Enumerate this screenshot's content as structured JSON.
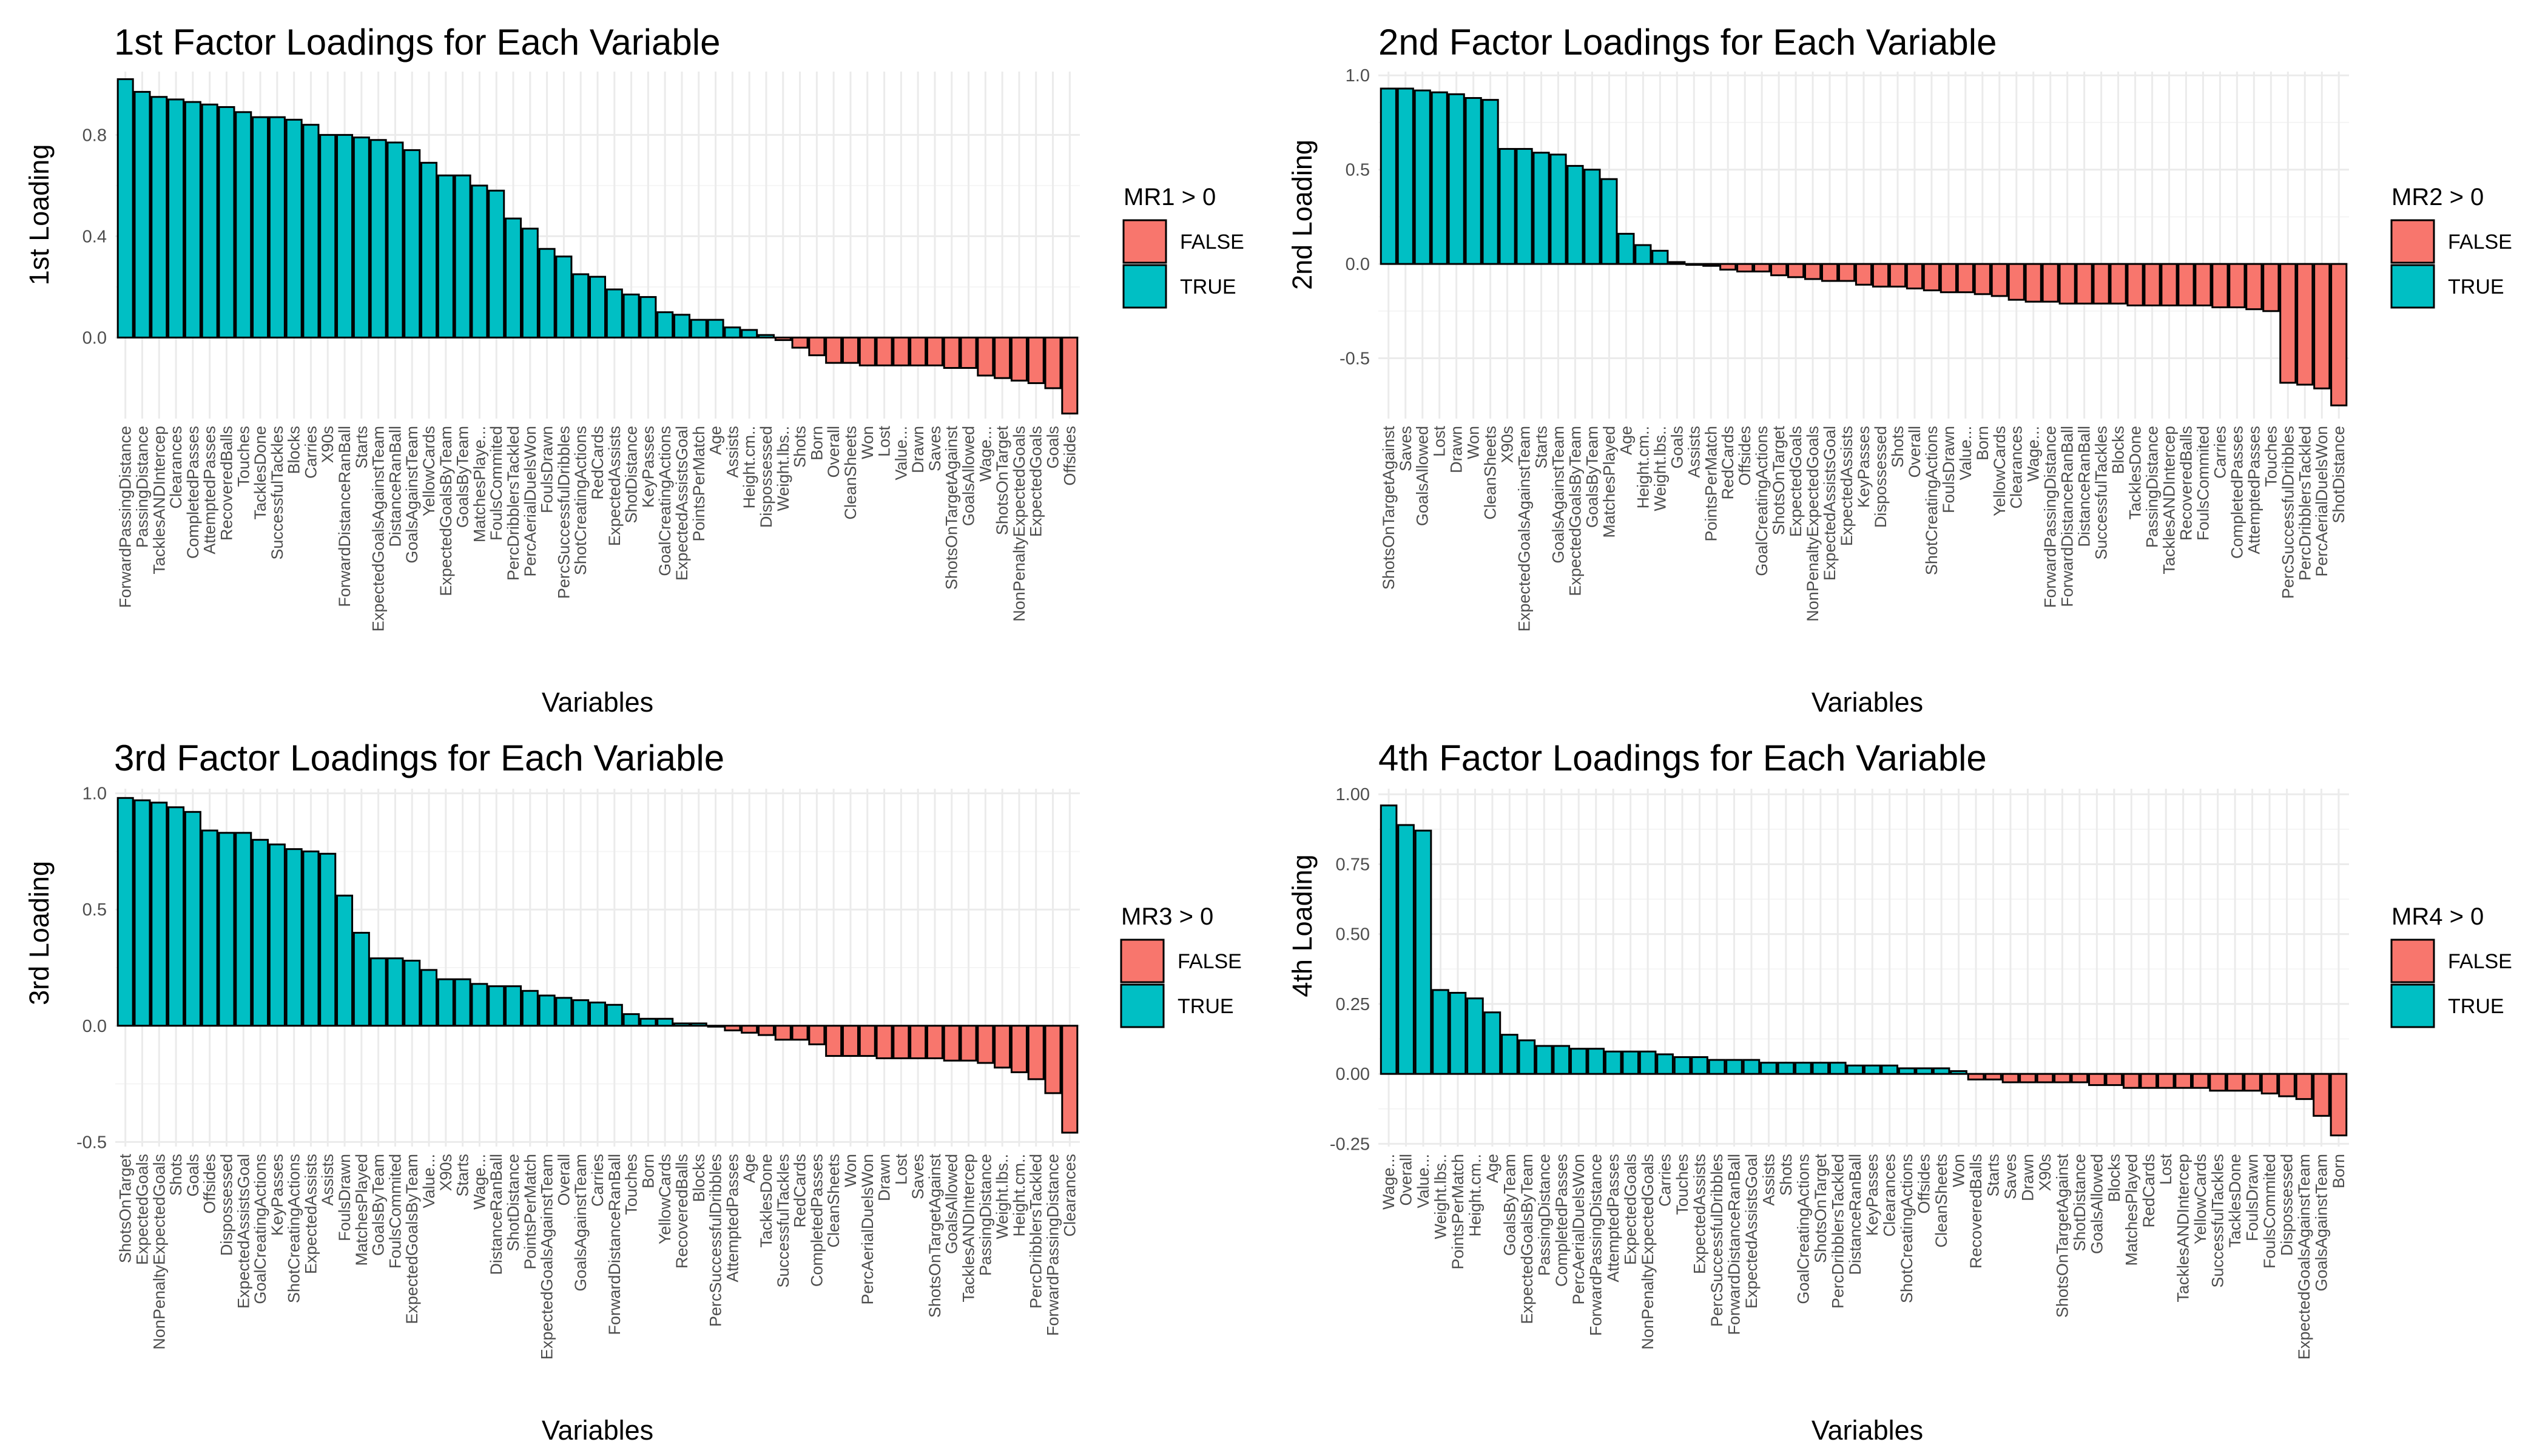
{
  "chart_data": [
    {
      "type": "bar",
      "title": "1st Factor Loadings for Each Variable",
      "xlabel": "Variables",
      "ylabel": "1st Loading",
      "ylim": [
        -0.32,
        1.05
      ],
      "yticks": [
        0,
        0.4,
        0.8
      ],
      "ytick_labels": [
        "0.0",
        "0.4",
        "0.8"
      ],
      "legend": {
        "title": "MR1 > 0",
        "entries": [
          "FALSE",
          "TRUE"
        ],
        "position": "right"
      },
      "grid": true,
      "categories": [
        "ForwardPassingDistance",
        "PassingDistance",
        "TacklesANDIntercep",
        "Clearances",
        "CompletedPasses",
        "AttemptedPasses",
        "RecoveredBalls",
        "Touches",
        "TacklesDone",
        "SuccessfulTackles",
        "Blocks",
        "Carries",
        "X90s",
        "ForwardDistanceRanBall",
        "Starts",
        "ExpectedGoalsAgainstTeam",
        "DistanceRanBall",
        "GoalsAgainstTeam",
        "YellowCards",
        "ExpectedGoalsByTeam",
        "GoalsByTeam",
        "MatchesPlaye...",
        "FoulsCommited",
        "PercDribblersTackled",
        "PercAerialDuelsWon",
        "FoulsDrawn",
        "PercSuccessfulDribbles",
        "ShotCreatingActions",
        "RedCards",
        "ExpectedAssists",
        "ShotDistance",
        "KeyPasses",
        "GoalCreatingActions",
        "ExpectedAssistsGoal",
        "PointsPerMatch",
        "Age",
        "Assists",
        "Height.cm..",
        "Dispossessed",
        "Weight.lbs..",
        "Shots",
        "Born",
        "Overall",
        "CleanSheets",
        "Won",
        "Lost",
        "Value...",
        "Drawn",
        "Saves",
        "ShotsOnTargetAgainst",
        "GoalsAllowed",
        "Wage...",
        "ShotsOnTarget",
        "NonPenaltyExpectedGoals",
        "ExpectedGoals",
        "Goals",
        "Offsides"
      ],
      "values": [
        1.02,
        0.97,
        0.95,
        0.94,
        0.93,
        0.92,
        0.91,
        0.89,
        0.87,
        0.87,
        0.86,
        0.84,
        0.8,
        0.8,
        0.79,
        0.78,
        0.77,
        0.74,
        0.69,
        0.64,
        0.64,
        0.6,
        0.58,
        0.47,
        0.43,
        0.35,
        0.32,
        0.25,
        0.24,
        0.19,
        0.17,
        0.16,
        0.1,
        0.09,
        0.07,
        0.07,
        0.04,
        0.03,
        0.01,
        -0.01,
        -0.04,
        -0.07,
        -0.1,
        -0.1,
        -0.11,
        -0.11,
        -0.11,
        -0.11,
        -0.11,
        -0.12,
        -0.12,
        -0.15,
        -0.16,
        -0.17,
        -0.18,
        -0.2,
        -0.3
      ]
    },
    {
      "type": "bar",
      "title": "2nd Factor Loadings for Each Variable",
      "xlabel": "Variables",
      "ylabel": "2nd Loading",
      "ylim": [
        -0.82,
        1.02
      ],
      "yticks": [
        -0.5,
        0,
        0.5,
        1.0
      ],
      "ytick_labels": [
        "-0.5",
        "0.0",
        "0.5",
        "1.0"
      ],
      "legend": {
        "title": "MR2 > 0",
        "entries": [
          "FALSE",
          "TRUE"
        ],
        "position": "right"
      },
      "grid": true,
      "categories": [
        "ShotsOnTargetAgainst",
        "Saves",
        "GoalsAllowed",
        "Lost",
        "Drawn",
        "Won",
        "CleanSheets",
        "X90s",
        "ExpectedGoalsAgainstTeam",
        "Starts",
        "GoalsAgainstTeam",
        "ExpectedGoalsByTeam",
        "GoalsByTeam",
        "MatchesPlayed",
        "Age",
        "Height.cm..",
        "Weight.lbs..",
        "Goals",
        "Assists",
        "PointsPerMatch",
        "RedCards",
        "Offsides",
        "GoalCreatingActions",
        "ShotsOnTarget",
        "ExpectedGoals",
        "NonPenaltyExpectedGoals",
        "ExpectedAssistsGoal",
        "ExpectedAssists",
        "KeyPasses",
        "Dispossessed",
        "Shots",
        "Overall",
        "ShotCreatingActions",
        "FoulsDrawn",
        "Value...",
        "Born",
        "YellowCards",
        "Clearances",
        "Wage...",
        "ForwardPassingDistance",
        "ForwardDistanceRanBall",
        "DistanceRanBall",
        "SuccessfulTackles",
        "Blocks",
        "TacklesDone",
        "PassingDistance",
        "TacklesANDIntercep",
        "RecoveredBalls",
        "FoulsCommited",
        "Carries",
        "CompletedPasses",
        "AttemptedPasses",
        "Touches",
        "PercSuccessfulDribbles",
        "PercDribblersTackled",
        "PercAerialDuelsWon",
        "ShotDistance"
      ],
      "values": [
        0.93,
        0.93,
        0.92,
        0.91,
        0.9,
        0.88,
        0.87,
        0.61,
        0.61,
        0.59,
        0.58,
        0.52,
        0.5,
        0.45,
        0.16,
        0.1,
        0.07,
        0.01,
        0.0,
        -0.01,
        -0.03,
        -0.04,
        -0.04,
        -0.06,
        -0.07,
        -0.08,
        -0.09,
        -0.09,
        -0.11,
        -0.12,
        -0.12,
        -0.13,
        -0.14,
        -0.15,
        -0.15,
        -0.16,
        -0.17,
        -0.19,
        -0.2,
        -0.2,
        -0.21,
        -0.21,
        -0.21,
        -0.21,
        -0.22,
        -0.22,
        -0.22,
        -0.22,
        -0.22,
        -0.23,
        -0.23,
        -0.24,
        -0.25,
        -0.63,
        -0.64,
        -0.66,
        -0.75
      ]
    },
    {
      "type": "bar",
      "title": "3rd Factor Loadings for Each Variable",
      "xlabel": "Variables",
      "ylabel": "3rd Loading",
      "ylim": [
        -0.52,
        1.02
      ],
      "yticks": [
        -0.5,
        0,
        0.5,
        1.0
      ],
      "ytick_labels": [
        "-0.5",
        "0.0",
        "0.5",
        "1.0"
      ],
      "legend": {
        "title": "MR3 > 0",
        "entries": [
          "FALSE",
          "TRUE"
        ],
        "position": "right"
      },
      "grid": true,
      "categories": [
        "ShotsOnTarget",
        "ExpectedGoals",
        "NonPenaltyExpectedGoals",
        "Shots",
        "Goals",
        "Offsides",
        "Dispossessed",
        "ExpectedAssistsGoal",
        "GoalCreatingActions",
        "KeyPasses",
        "ShotCreatingActions",
        "ExpectedAssists",
        "Assists",
        "FoulsDrawn",
        "MatchesPlayed",
        "GoalsByTeam",
        "FoulsCommited",
        "ExpectedGoalsByTeam",
        "Value...",
        "X90s",
        "Starts",
        "Wage...",
        "DistanceRanBall",
        "ShotDistance",
        "PointsPerMatch",
        "ExpectedGoalsAgainstTeam",
        "Overall",
        "GoalsAgainstTeam",
        "Carries",
        "ForwardDistanceRanBall",
        "Touches",
        "Born",
        "YellowCards",
        "RecoveredBalls",
        "Blocks",
        "PercSuccessfulDribbles",
        "AttemptedPasses",
        "Age",
        "TacklesDone",
        "SuccessfulTackles",
        "RedCards",
        "CompletedPasses",
        "CleanSheets",
        "Won",
        "PercAerialDuelsWon",
        "Drawn",
        "Lost",
        "Saves",
        "ShotsOnTargetAgainst",
        "GoalsAllowed",
        "TacklesANDIntercep",
        "PassingDistance",
        "Weight.lbs..",
        "Height.cm..",
        "PercDribblersTackled",
        "ForwardPassingDistance",
        "Clearances"
      ],
      "values": [
        0.98,
        0.97,
        0.96,
        0.94,
        0.92,
        0.84,
        0.83,
        0.83,
        0.8,
        0.78,
        0.76,
        0.75,
        0.74,
        0.56,
        0.4,
        0.29,
        0.29,
        0.28,
        0.24,
        0.2,
        0.2,
        0.18,
        0.17,
        0.17,
        0.15,
        0.13,
        0.12,
        0.11,
        0.1,
        0.09,
        0.05,
        0.03,
        0.03,
        0.01,
        0.01,
        0.0,
        -0.02,
        -0.03,
        -0.04,
        -0.06,
        -0.06,
        -0.08,
        -0.13,
        -0.13,
        -0.13,
        -0.14,
        -0.14,
        -0.14,
        -0.14,
        -0.15,
        -0.15,
        -0.16,
        -0.18,
        -0.2,
        -0.23,
        -0.29,
        -0.46
      ]
    },
    {
      "type": "bar",
      "title": "4th Factor Loadings for Each Variable",
      "xlabel": "Variables",
      "ylabel": "4th Loading",
      "ylim": [
        -0.26,
        1.02
      ],
      "yticks": [
        -0.25,
        0,
        0.25,
        0.5,
        0.75,
        1.0
      ],
      "ytick_labels": [
        "-0.25",
        "0.00",
        "0.25",
        "0.50",
        "0.75",
        "1.00"
      ],
      "legend": {
        "title": "MR4 > 0",
        "entries": [
          "FALSE",
          "TRUE"
        ],
        "position": "right"
      },
      "grid": true,
      "categories": [
        "Wage...",
        "Overall",
        "Value...",
        "Weight.lbs..",
        "PointsPerMatch",
        "Height.cm..",
        "Age",
        "GoalsByTeam",
        "ExpectedGoalsByTeam",
        "PassingDistance",
        "CompletedPasses",
        "PercAerialDuelsWon",
        "ForwardPassingDistance",
        "AttemptedPasses",
        "ExpectedGoals",
        "NonPenaltyExpectedGoals",
        "Carries",
        "Touches",
        "ExpectedAssists",
        "PercSuccessfulDribbles",
        "ForwardDistanceRanBall",
        "ExpectedAssistsGoal",
        "Assists",
        "Shots",
        "GoalCreatingActions",
        "ShotsOnTarget",
        "PercDribblersTackled",
        "DistanceRanBall",
        "KeyPasses",
        "Clearances",
        "ShotCreatingActions",
        "Offsides",
        "CleanSheets",
        "Won",
        "RecoveredBalls",
        "Starts",
        "Saves",
        "Drawn",
        "X90s",
        "ShotsOnTargetAgainst",
        "ShotDistance",
        "GoalsAllowed",
        "Blocks",
        "MatchesPlayed",
        "RedCards",
        "Lost",
        "TacklesANDIntercep",
        "YellowCards",
        "SuccessfulTackles",
        "TacklesDone",
        "FoulsDrawn",
        "FoulsCommited",
        "Dispossessed",
        "ExpectedGoalsAgainstTeam",
        "GoalsAgainstTeam",
        "Born"
      ],
      "values": [
        0.96,
        0.89,
        0.87,
        0.3,
        0.29,
        0.27,
        0.22,
        0.14,
        0.12,
        0.1,
        0.1,
        0.09,
        0.09,
        0.08,
        0.08,
        0.08,
        0.07,
        0.06,
        0.06,
        0.05,
        0.05,
        0.05,
        0.04,
        0.04,
        0.04,
        0.04,
        0.04,
        0.03,
        0.03,
        0.03,
        0.02,
        0.02,
        0.02,
        0.01,
        -0.02,
        -0.02,
        -0.03,
        -0.03,
        -0.03,
        -0.03,
        -0.03,
        -0.04,
        -0.04,
        -0.05,
        -0.05,
        -0.05,
        -0.05,
        -0.05,
        -0.06,
        -0.06,
        -0.06,
        -0.07,
        -0.08,
        -0.09,
        -0.15,
        -0.22
      ]
    }
  ],
  "colors": {
    "positive": "#00bfc4",
    "negative": "#f8766d",
    "grid_major": "#ebebeb",
    "grid_minor": "#f5f5f5"
  }
}
